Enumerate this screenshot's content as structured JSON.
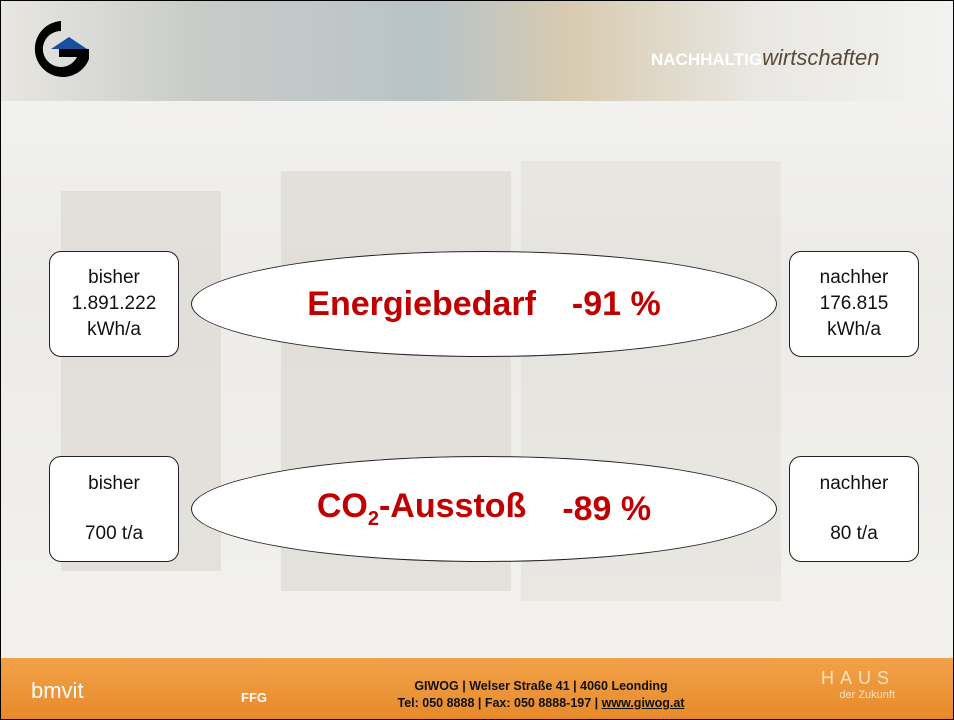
{
  "header": {
    "brand_strong": "NACHHALTIG",
    "brand_light": "wirtschaften"
  },
  "rows": [
    {
      "before": {
        "label": "bisher",
        "value": "1.891.222",
        "unit": "kWh/a"
      },
      "title": "Energiebedarf",
      "change": "-91 %",
      "after": {
        "label": "nachher",
        "value": "176.815",
        "unit": "kWh/a"
      }
    },
    {
      "before": {
        "label": "bisher",
        "value": "700 t/a"
      },
      "title_main": "CO",
      "title_sub": "2",
      "title_rest": "-Ausstoß",
      "change": "-89 %",
      "after": {
        "label": "nachher",
        "value": "80 t/a"
      }
    }
  ],
  "footer": {
    "line1": "GIWOG  |  Welser Straße 41  |  4060 Leonding",
    "line2": "Tel: 050 8888 | Fax: 050 8888-197 | ",
    "link": "www.giwog.at",
    "logo_left": "bmvit",
    "logo_mid": "FFG",
    "logo_right_top": "HAUS",
    "logo_right_bottom": "der Zukunft"
  }
}
